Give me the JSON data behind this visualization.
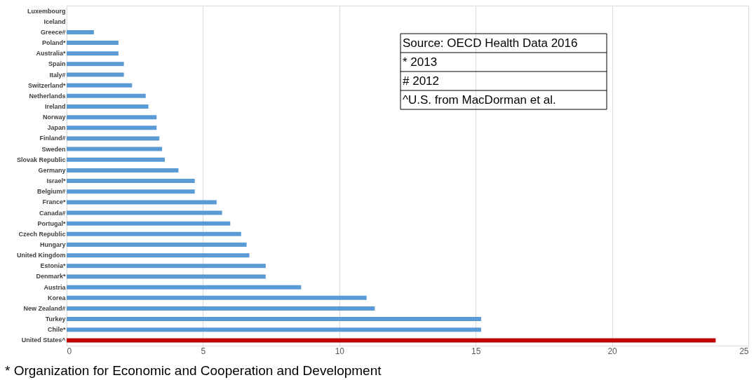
{
  "chart_data": {
    "type": "bar",
    "orientation": "horizontal",
    "categories": [
      "Luxembourg",
      "Iceland",
      "Greece#",
      "Poland*",
      "Australia*",
      "Spain",
      "Italy#",
      "Switzerland*",
      "Netherlands",
      "Ireland",
      "Norway",
      "Japan",
      "Finland#",
      "Sweden",
      "Slovak Republic",
      "Germany",
      "Israel*",
      "Belgium#",
      "France*",
      "Canada#",
      "Portugal*",
      "Czech Republic",
      "Hungary",
      "United Kingdom",
      "Estonia*",
      "Denmark*",
      "Austria",
      "Korea",
      "New Zealand#",
      "Turkey",
      "Chile*",
      "United States^"
    ],
    "values": [
      0,
      0,
      1.0,
      1.9,
      1.9,
      2.1,
      2.1,
      2.4,
      2.9,
      3.0,
      3.3,
      3.3,
      3.4,
      3.5,
      3.6,
      4.1,
      4.7,
      4.7,
      5.5,
      5.7,
      6.0,
      6.4,
      6.6,
      6.7,
      7.3,
      7.3,
      8.6,
      11.0,
      11.3,
      15.2,
      15.2,
      23.8
    ],
    "colors": [
      "#5b9bd5",
      "#5b9bd5",
      "#5b9bd5",
      "#5b9bd5",
      "#5b9bd5",
      "#5b9bd5",
      "#5b9bd5",
      "#5b9bd5",
      "#5b9bd5",
      "#5b9bd5",
      "#5b9bd5",
      "#5b9bd5",
      "#5b9bd5",
      "#5b9bd5",
      "#5b9bd5",
      "#5b9bd5",
      "#5b9bd5",
      "#5b9bd5",
      "#5b9bd5",
      "#5b9bd5",
      "#5b9bd5",
      "#5b9bd5",
      "#5b9bd5",
      "#5b9bd5",
      "#5b9bd5",
      "#5b9bd5",
      "#5b9bd5",
      "#5b9bd5",
      "#5b9bd5",
      "#5b9bd5",
      "#5b9bd5",
      "#c00000"
    ],
    "xlim": [
      0,
      25
    ],
    "xticks": [
      0,
      5,
      10,
      15,
      20,
      25
    ],
    "grid": "x",
    "annotations": [
      "Source: OECD Health Data 2016",
      "* 2013",
      "# 2012",
      "^U.S. from MacDorman et al.",
      "* Organization for Economic and Cooperation and Development"
    ]
  }
}
